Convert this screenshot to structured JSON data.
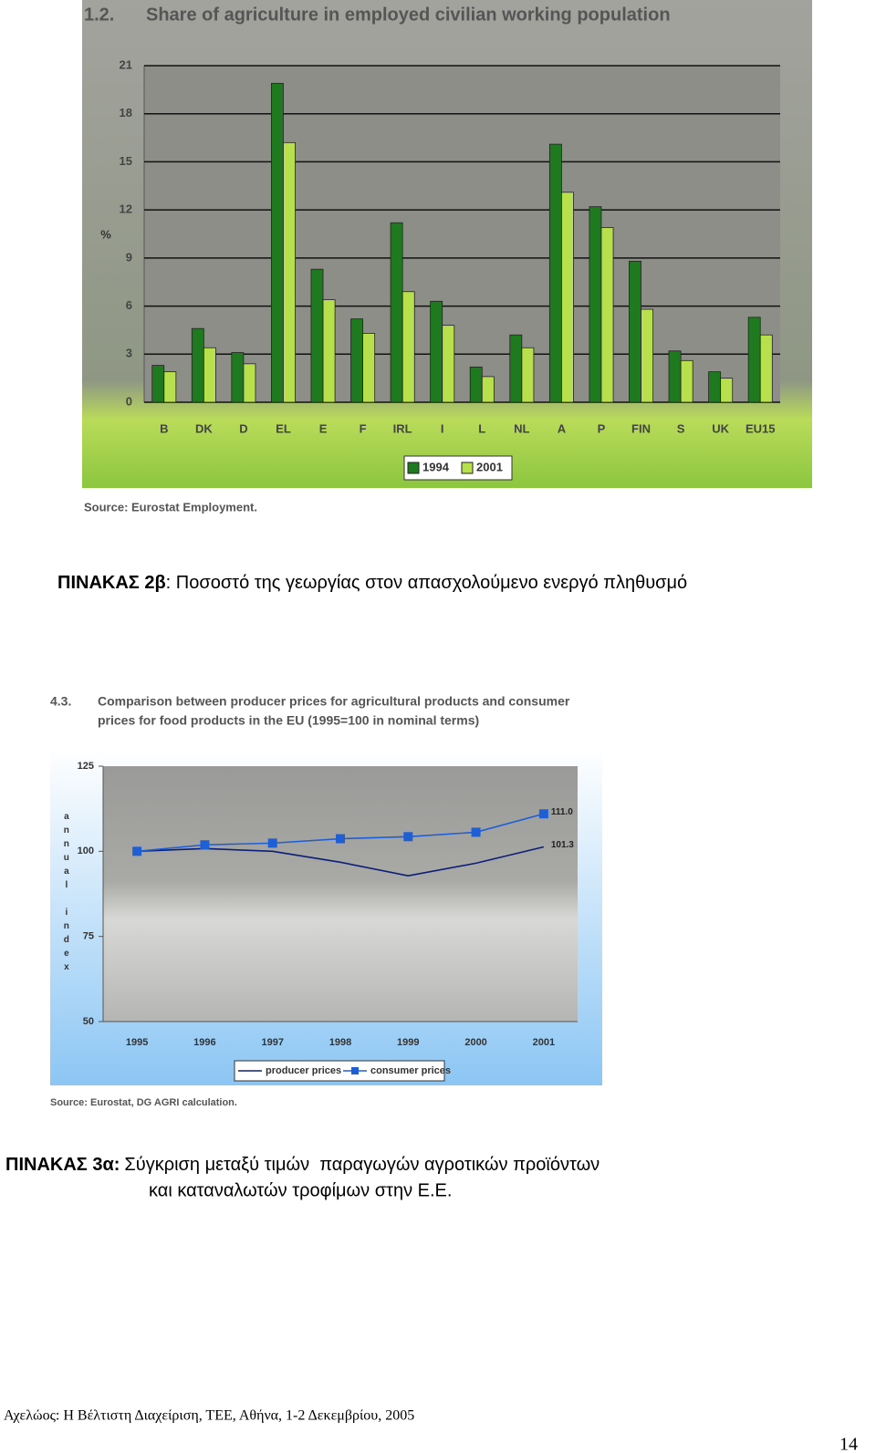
{
  "chart_data": [
    {
      "type": "bar",
      "number": "1.2.",
      "title": "Share of agriculture in employed civilian working population",
      "y_label": "%",
      "categories": [
        "B",
        "DK",
        "D",
        "EL",
        "E",
        "F",
        "IRL",
        "I",
        "L",
        "NL",
        "A",
        "P",
        "FIN",
        "S",
        "UK",
        "EU15"
      ],
      "series": [
        {
          "name": "1994",
          "color": "#1f7a1f",
          "values": [
            2.3,
            4.6,
            3.1,
            19.9,
            8.3,
            5.2,
            11.2,
            6.3,
            2.2,
            4.2,
            16.1,
            12.2,
            8.8,
            3.2,
            1.9,
            5.3
          ]
        },
        {
          "name": "2001",
          "color": "#b8e04c",
          "values": [
            1.9,
            3.4,
            2.4,
            16.2,
            6.4,
            4.3,
            6.9,
            4.8,
            1.6,
            3.4,
            13.1,
            10.9,
            5.8,
            2.6,
            1.5,
            4.2
          ]
        }
      ],
      "ylim": [
        0,
        21
      ],
      "yticks": [
        0,
        3,
        6,
        9,
        12,
        15,
        18,
        21
      ],
      "grid": true,
      "legend": "bottom",
      "source": "Source: Eurostat Employment."
    },
    {
      "type": "line",
      "number": "4.3.",
      "title": [
        "Comparison between producer prices for agricultural products and consumer",
        "prices for food products in the EU (1995=100 in nominal terms)"
      ],
      "y_label": "annual index",
      "categories": [
        "1995",
        "1996",
        "1997",
        "1998",
        "1999",
        "2000",
        "2001"
      ],
      "series": [
        {
          "name": "producer prices",
          "color": "#0b1f78",
          "values": [
            100,
            100.8,
            100,
            96.8,
            92.8,
            96.5,
            101.3
          ],
          "value_labels": [
            null,
            null,
            null,
            null,
            null,
            null,
            "101.3"
          ]
        },
        {
          "name": "consumer prices",
          "color": "#1f5fd6",
          "marker": "square",
          "values": [
            100,
            101.9,
            102.4,
            103.7,
            104.3,
            105.6,
            111.0
          ],
          "value_labels": [
            null,
            null,
            null,
            null,
            null,
            null,
            "111.0"
          ]
        }
      ],
      "ylim": [
        50,
        125
      ],
      "yticks": [
        50,
        75,
        100,
        125
      ],
      "grid": false,
      "legend": "bottom",
      "source": "Source: Eurostat, DG AGRI calculation."
    }
  ],
  "captions": [
    {
      "label": "ΠΙΝΑΚΑΣ 2β",
      "text": ": Ποσοστό της γεωργίας στον απασχολούμενο ενεργό πληθυσμό"
    },
    {
      "label": "ΠΙΝΑΚΑΣ 3α:",
      "lines": [
        "Σύγκριση μεταξύ τιμών  παραγωγών αγροτικών προϊόντων",
        "και καταναλωτών τροφίμων στην Ε.Ε."
      ]
    }
  ],
  "footer": "Αχελώος: Η Βέλτιστη Διαχείριση, ΤΕΕ, Αθήνα, 1-2 Δεκεμβρίου, 2005",
  "page_number": "14"
}
